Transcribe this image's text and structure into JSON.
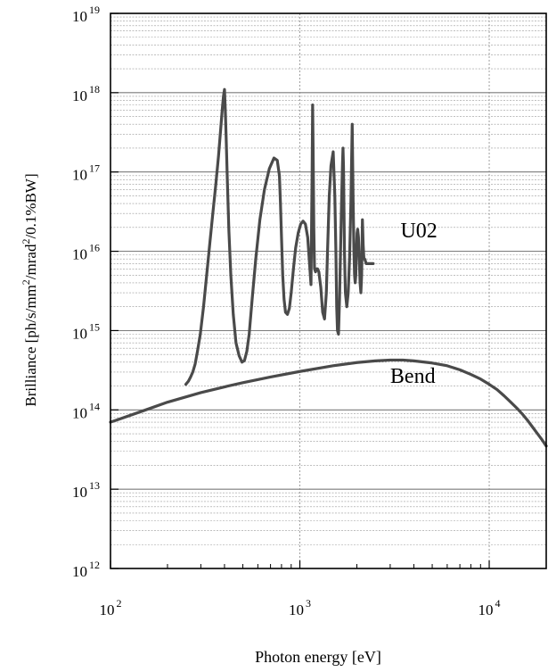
{
  "chart_data": {
    "type": "line",
    "xlabel": "Photon energy [eV]",
    "ylabel": "Brilliance [ph/s/mm2/mrad2/0.1%BW]",
    "xscale": "log",
    "yscale": "log",
    "xlim": [
      100,
      20000
    ],
    "ylim": [
      1000000000000.0,
      1e+19
    ],
    "grid": true,
    "x_ticks": [
      {
        "value": 100,
        "base": "10",
        "exp": "2"
      },
      {
        "value": 1000,
        "base": "10",
        "exp": "3"
      },
      {
        "value": 10000,
        "base": "10",
        "exp": "4"
      }
    ],
    "y_ticks": [
      {
        "value": 1000000000000.0,
        "base": "10",
        "exp": "12"
      },
      {
        "value": 10000000000000.0,
        "base": "10",
        "exp": "13"
      },
      {
        "value": 100000000000000.0,
        "base": "10",
        "exp": "14"
      },
      {
        "value": 1000000000000000.0,
        "base": "10",
        "exp": "15"
      },
      {
        "value": 1e+16,
        "base": "10",
        "exp": "16"
      },
      {
        "value": 1e+17,
        "base": "10",
        "exp": "17"
      },
      {
        "value": 1e+18,
        "base": "10",
        "exp": "18"
      },
      {
        "value": 1e+19,
        "base": "10",
        "exp": "19"
      }
    ],
    "series": [
      {
        "name": "U02",
        "color": "#4a4a4a",
        "x": [
          250,
          258,
          265,
          272,
          280,
          288,
          298,
          310,
          322,
          335,
          348,
          360,
          372,
          382,
          390,
          395,
          400,
          404,
          408,
          414,
          422,
          432,
          445,
          460,
          478,
          495,
          510,
          525,
          540,
          560,
          585,
          615,
          650,
          690,
          730,
          760,
          780,
          790,
          800,
          812,
          825,
          840,
          860,
          880,
          900,
          925,
          950,
          980,
          1010,
          1040,
          1070,
          1100,
          1130,
          1145,
          1160,
          1168,
          1175,
          1185,
          1195,
          1210,
          1225,
          1240,
          1260,
          1290,
          1320,
          1350,
          1380,
          1400,
          1430,
          1460,
          1500,
          1530,
          1550,
          1565,
          1580,
          1600,
          1620,
          1640,
          1660,
          1680,
          1690,
          1700,
          1720,
          1740,
          1770,
          1800,
          1830,
          1860,
          1890,
          1910,
          1930,
          1945,
          1960,
          1975,
          1990,
          2005,
          2020,
          2040,
          2060,
          2080,
          2100,
          2120,
          2140,
          2160,
          2180,
          2200,
          2220,
          2240,
          2260,
          2280,
          2300,
          2320,
          2340,
          2360,
          2380,
          2400,
          2420,
          2440
        ],
        "y": [
          210000000000000.0,
          230000000000000.0,
          260000000000000.0,
          300000000000000.0,
          380000000000000.0,
          550000000000000.0,
          900000000000000.0,
          2000000000000000.0,
          5000000000000000.0,
          1.3e+16,
          3.2e+16,
          7e+16,
          1.6e+17,
          3.5e+17,
          6.5e+17,
          9e+17,
          1.1e+18,
          6e+17,
          2.8e+17,
          8e+16,
          1.8e+16,
          5000000000000000.0,
          1600000000000000.0,
          700000000000000.0,
          480000000000000.0,
          400000000000000.0,
          420000000000000.0,
          550000000000000.0,
          900000000000000.0,
          2500000000000000.0,
          8000000000000000.0,
          2.5e+16,
          6e+16,
          1.1e+17,
          1.5e+17,
          1.4e+17,
          9e+16,
          4e+16,
          1.5e+16,
          5000000000000000.0,
          2500000000000000.0,
          1700000000000000.0,
          1600000000000000.0,
          1900000000000000.0,
          3000000000000000.0,
          6000000000000000.0,
          1.1e+16,
          1.7e+16,
          2.2e+16,
          2.4e+16,
          2.2e+16,
          1.5e+16,
          6000000000000000.0,
          3800000000000000.0,
          8e+16,
          7e+17,
          2e+17,
          2e+16,
          6000000000000000.0,
          5500000000000000.0,
          6000000000000000.0,
          6000000000000000.0,
          5500000000000000.0,
          3500000000000000.0,
          1700000000000000.0,
          1400000000000000.0,
          3000000000000000.0,
          1e+16,
          5e+16,
          1.2e+17,
          1.8e+17,
          5e+16,
          1e+16,
          2000000000000000.0,
          1000000000000000.0,
          900000000000000.0,
          2500000000000000.0,
          1e+16,
          4e+16,
          1.3e+17,
          2e+17,
          1.2e+17,
          1e+16,
          3000000000000000.0,
          2000000000000000.0,
          3000000000000000.0,
          8000000000000000.0,
          4e+16,
          4e+17,
          5e+16,
          1e+16,
          5000000000000000.0,
          4000000000000000.0,
          5000000000000000.0,
          1e+16,
          1.7e+16,
          1.9e+16,
          1.5e+16,
          8000000000000000.0,
          4000000000000000.0,
          3000000000000000.0,
          5000000000000000.0,
          2.5e+16,
          1.2e+16,
          8000000000000000.0,
          8000000000000000.0,
          7500000000000000.0,
          7000000000000000.0,
          7000000000000000.0,
          7000000000000000.0,
          7000000000000000.0,
          7000000000000000.0,
          7000000000000000.0,
          7000000000000000.0,
          7000000000000000.0,
          7000000000000000.0,
          7000000000000000.0,
          7000000000000000.0
        ],
        "label": {
          "text": "U02",
          "x": 3400,
          "y": 1.5e+16
        }
      },
      {
        "name": "Bend",
        "color": "#4a4a4a",
        "x": [
          100,
          150,
          200,
          300,
          400,
          500,
          700,
          1000,
          1500,
          2000,
          2500,
          3000,
          3500,
          4000,
          5000,
          6000,
          7000,
          8000,
          9000,
          10000,
          11000,
          12000,
          13000,
          14000,
          15000,
          16000,
          17000,
          18000,
          19000,
          20000
        ],
        "y": [
          70000000000000.0,
          98000000000000.0,
          125000000000000.0,
          165000000000000.0,
          195000000000000.0,
          220000000000000.0,
          260000000000000.0,
          305000000000000.0,
          360000000000000.0,
          395000000000000.0,
          415000000000000.0,
          425000000000000.0,
          425000000000000.0,
          415000000000000.0,
          390000000000000.0,
          360000000000000.0,
          320000000000000.0,
          280000000000000.0,
          245000000000000.0,
          210000000000000.0,
          180000000000000.0,
          150000000000000.0,
          125000000000000.0,
          105000000000000.0,
          88000000000000.0,
          73000000000000.0,
          60000000000000.0,
          50000000000000.0,
          42000000000000.0,
          35000000000000.0
        ],
        "label": {
          "text": "Bend",
          "x": 3000,
          "y": 220000000000000.0
        }
      }
    ]
  }
}
